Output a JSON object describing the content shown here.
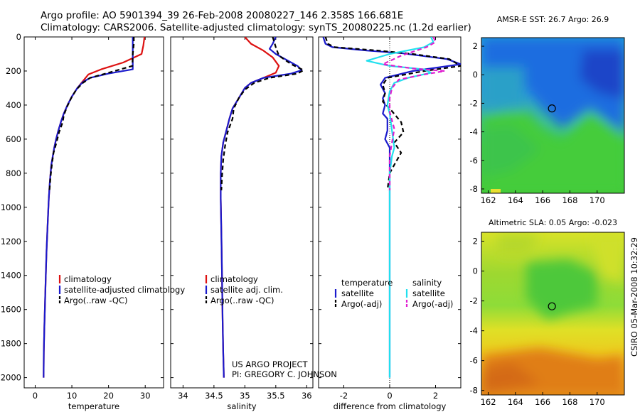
{
  "header": {
    "line1": "Argo profile: AO 5901394_39 26-Feb-2008 20080227_146 2.358S 166.681E",
    "line2": "Climatology: CARS2006. Satellite-adjusted climatology: synTS_20080225.nc (1.2d earlier)"
  },
  "side_label": "CSIRO 05-Mar-2008 10:32:29",
  "credit": {
    "line1": "US ARGO PROJECT",
    "line2": "PI: GREGORY C. JOHNSON"
  },
  "colors": {
    "climatology": "#dd1111",
    "satellite": "#1a1acc",
    "argo": "#000000",
    "sat_salinity": "#22e0ee",
    "argo_salinity": "#e020d0"
  },
  "chart_data": [
    {
      "type": "line",
      "id": "temperature",
      "xlabel": "temperature",
      "ylabel": "",
      "xlim": [
        -3,
        35
      ],
      "ylim": [
        2060,
        0
      ],
      "y_reversed": true,
      "xticks": [
        0,
        10,
        20,
        30
      ],
      "yticks": [
        0,
        200,
        400,
        600,
        800,
        1000,
        1200,
        1400,
        1600,
        1800,
        2000
      ],
      "legend": [
        "climatology",
        "satellite-adjusted climatology",
        "Argo(..raw -QC)"
      ],
      "series": [
        {
          "name": "climatology",
          "color": "#dd1111",
          "dash": "",
          "points": [
            [
              29.8,
              0
            ],
            [
              29.5,
              50
            ],
            [
              29.0,
              100
            ],
            [
              24,
              150
            ],
            [
              18,
              190
            ],
            [
              14.5,
              220
            ],
            [
              13,
              260
            ],
            [
              11.5,
              300
            ],
            [
              10,
              350
            ],
            [
              8.8,
              400
            ],
            [
              7.8,
              450
            ],
            [
              7.0,
              500
            ],
            [
              6.3,
              550
            ],
            [
              5.7,
              600
            ],
            [
              5.2,
              650
            ],
            [
              4.8,
              700
            ],
            [
              4.4,
              750
            ],
            [
              4.0,
              850
            ],
            [
              3.7,
              950
            ],
            [
              3.4,
              1100
            ],
            [
              3.1,
              1250
            ],
            [
              2.9,
              1400
            ],
            [
              2.7,
              1550
            ],
            [
              2.5,
              1700
            ],
            [
              2.35,
              1850
            ],
            [
              2.3,
              2000
            ]
          ]
        },
        {
          "name": "satellite-adjusted climatology",
          "color": "#1a1acc",
          "dash": "",
          "points": [
            [
              26.6,
              0
            ],
            [
              26.6,
              100
            ],
            [
              26.6,
              190
            ],
            [
              20,
              215
            ],
            [
              15,
              240
            ],
            [
              13,
              265
            ],
            [
              11.5,
              300
            ],
            [
              10,
              350
            ],
            [
              8.8,
              400
            ],
            [
              7.8,
              450
            ],
            [
              7.0,
              500
            ],
            [
              6.3,
              550
            ],
            [
              5.7,
              600
            ],
            [
              5.2,
              650
            ],
            [
              4.8,
              700
            ],
            [
              4.4,
              750
            ],
            [
              4.0,
              850
            ],
            [
              3.7,
              950
            ],
            [
              3.4,
              1100
            ],
            [
              3.1,
              1250
            ],
            [
              2.9,
              1400
            ],
            [
              2.7,
              1550
            ],
            [
              2.5,
              1700
            ],
            [
              2.35,
              1850
            ],
            [
              2.3,
              2000
            ]
          ]
        },
        {
          "name": "Argo(..raw -QC)",
          "color": "#000000",
          "dash": "6,4",
          "points": [
            [
              26.9,
              0
            ],
            [
              26.9,
              40
            ],
            [
              26.6,
              100
            ],
            [
              26.5,
              170
            ],
            [
              20,
              210
            ],
            [
              15,
              240
            ],
            [
              13,
              270
            ],
            [
              11.2,
              310
            ],
            [
              9.8,
              360
            ],
            [
              8.7,
              410
            ],
            [
              7.8,
              460
            ],
            [
              7.5,
              500
            ],
            [
              6.5,
              560
            ],
            [
              5.8,
              620
            ],
            [
              5.0,
              680
            ],
            [
              4.6,
              740
            ],
            [
              4.2,
              820
            ],
            [
              3.9,
              900
            ]
          ]
        }
      ]
    },
    {
      "type": "line",
      "id": "salinity",
      "xlabel": "salinity",
      "ylabel": "",
      "xlim": [
        33.8,
        36.1
      ],
      "ylim": [
        2060,
        0
      ],
      "y_reversed": true,
      "xticks": [
        34,
        34.5,
        35,
        35.5,
        36
      ],
      "legend": [
        "climatology",
        "satellite adj. clim.",
        "Argo(..raw -QC)"
      ],
      "series": [
        {
          "name": "climatology",
          "color": "#dd1111",
          "dash": "",
          "points": [
            [
              35.0,
              0
            ],
            [
              35.1,
              40
            ],
            [
              35.3,
              80
            ],
            [
              35.45,
              120
            ],
            [
              35.55,
              170
            ],
            [
              35.5,
              210
            ],
            [
              35.3,
              240
            ],
            [
              35.1,
              270
            ],
            [
              35.0,
              300
            ],
            [
              34.9,
              360
            ],
            [
              34.8,
              420
            ],
            [
              34.75,
              480
            ],
            [
              34.7,
              550
            ],
            [
              34.65,
              620
            ],
            [
              34.62,
              700
            ],
            [
              34.61,
              800
            ],
            [
              34.61,
              950
            ],
            [
              34.62,
              1150
            ],
            [
              34.63,
              1400
            ],
            [
              34.64,
              1650
            ],
            [
              34.65,
              1850
            ],
            [
              34.66,
              2000
            ]
          ]
        },
        {
          "name": "satellite adj. clim.",
          "color": "#1a1acc",
          "dash": "",
          "points": [
            [
              35.5,
              0
            ],
            [
              35.45,
              40
            ],
            [
              35.4,
              70
            ],
            [
              35.5,
              100
            ],
            [
              35.7,
              140
            ],
            [
              35.85,
              170
            ],
            [
              35.92,
              195
            ],
            [
              35.75,
              215
            ],
            [
              35.3,
              240
            ],
            [
              35.1,
              270
            ],
            [
              35.0,
              300
            ],
            [
              34.9,
              360
            ],
            [
              34.8,
              420
            ],
            [
              34.75,
              480
            ],
            [
              34.7,
              550
            ],
            [
              34.65,
              620
            ],
            [
              34.62,
              700
            ],
            [
              34.61,
              800
            ],
            [
              34.61,
              950
            ],
            [
              34.62,
              1150
            ],
            [
              34.63,
              1400
            ],
            [
              34.64,
              1650
            ],
            [
              34.65,
              1850
            ],
            [
              34.66,
              2000
            ]
          ]
        },
        {
          "name": "Argo(..raw -QC)",
          "color": "#000000",
          "dash": "6,4",
          "points": [
            [
              35.45,
              0
            ],
            [
              35.5,
              60
            ],
            [
              35.55,
              110
            ],
            [
              35.75,
              160
            ],
            [
              35.95,
              195
            ],
            [
              35.85,
              215
            ],
            [
              35.4,
              240
            ],
            [
              35.15,
              270
            ],
            [
              35.0,
              310
            ],
            [
              34.9,
              360
            ],
            [
              34.82,
              420
            ],
            [
              34.8,
              480
            ],
            [
              34.72,
              560
            ],
            [
              34.68,
              640
            ],
            [
              34.65,
              720
            ],
            [
              34.63,
              820
            ],
            [
              34.62,
              900
            ]
          ]
        }
      ]
    },
    {
      "type": "line",
      "id": "difference",
      "xlabel": "difference from climatology",
      "ylabel": "",
      "xlim": [
        -3.1,
        3.1
      ],
      "ylim": [
        2060,
        0
      ],
      "y_reversed": true,
      "xticks": [
        -2,
        0,
        2
      ],
      "legend_groups": [
        {
          "heading": "temperature",
          "entries": [
            "satellite",
            "Argo(-adj)"
          ]
        },
        {
          "heading": "salinity",
          "entries": [
            "satellite",
            "Argo(-adj)"
          ]
        }
      ],
      "series": [
        {
          "name": "temperature satellite",
          "color": "#1a1acc",
          "dash": "",
          "points": [
            [
              -2.9,
              0
            ],
            [
              -2.8,
              40
            ],
            [
              -2.5,
              60
            ],
            [
              -1.0,
              80
            ],
            [
              0.5,
              95
            ],
            [
              2.5,
              130
            ],
            [
              3.1,
              160
            ],
            [
              1.0,
              200
            ],
            [
              -0.2,
              240
            ],
            [
              -0.4,
              280
            ],
            [
              -0.2,
              330
            ],
            [
              -0.3,
              360
            ],
            [
              -0.2,
              400
            ],
            [
              -0.3,
              450
            ],
            [
              -0.1,
              480
            ],
            [
              -0.1,
              550
            ],
            [
              -0.2,
              600
            ],
            [
              0,
              650
            ],
            [
              0,
              800
            ],
            [
              0,
              1000
            ],
            [
              0,
              2000
            ]
          ]
        },
        {
          "name": "temperature Argo(-adj)",
          "color": "#000000",
          "dash": "6,4",
          "points": [
            [
              -2.8,
              0
            ],
            [
              -2.7,
              40
            ],
            [
              -2.4,
              60
            ],
            [
              -0.5,
              80
            ],
            [
              1.0,
              100
            ],
            [
              2.6,
              130
            ],
            [
              3.1,
              170
            ],
            [
              1.5,
              200
            ],
            [
              -0.1,
              240
            ],
            [
              -0.3,
              280
            ],
            [
              -0.2,
              330
            ],
            [
              -0.3,
              380
            ],
            [
              0.0,
              420
            ],
            [
              0.5,
              500
            ],
            [
              0.6,
              560
            ],
            [
              0.2,
              620
            ],
            [
              0.5,
              680
            ],
            [
              0.2,
              750
            ],
            [
              0,
              800
            ],
            [
              -0.1,
              900
            ]
          ]
        },
        {
          "name": "salinity satellite",
          "color": "#22e0ee",
          "dash": "",
          "points": [
            [
              1.8,
              0
            ],
            [
              1.9,
              30
            ],
            [
              1.5,
              60
            ],
            [
              0,
              100
            ],
            [
              -1.0,
              140
            ],
            [
              0,
              170
            ],
            [
              1.5,
              190
            ],
            [
              1.8,
              210
            ],
            [
              0.8,
              240
            ],
            [
              0.2,
              270
            ],
            [
              0,
              320
            ],
            [
              -0.1,
              400
            ],
            [
              0,
              450
            ],
            [
              0.1,
              550
            ],
            [
              0.2,
              650
            ],
            [
              0.1,
              700
            ],
            [
              0,
              800
            ],
            [
              0,
              1000
            ],
            [
              0,
              2000
            ]
          ]
        },
        {
          "name": "salinity Argo(-adj)",
          "color": "#e020d0",
          "dash": "6,4",
          "points": [
            [
              1.9,
              0
            ],
            [
              2.0,
              30
            ],
            [
              1.6,
              60
            ],
            [
              0.5,
              110
            ],
            [
              -0.3,
              160
            ],
            [
              1.0,
              185
            ],
            [
              2.4,
              200
            ],
            [
              1.5,
              220
            ],
            [
              0.4,
              250
            ],
            [
              0.1,
              300
            ],
            [
              0,
              360
            ],
            [
              0,
              440
            ],
            [
              0.2,
              540
            ],
            [
              0.1,
              620
            ],
            [
              0,
              700
            ],
            [
              0,
              900
            ]
          ]
        }
      ]
    },
    {
      "type": "heatmap",
      "id": "amsre-sst",
      "title": "AMSR-E SST: 26.7 Argo: 26.9",
      "xlim": [
        161.5,
        172
      ],
      "ylim": [
        -8.3,
        2.6
      ],
      "xticks": [
        162,
        164,
        166,
        168,
        170
      ],
      "yticks": [
        2,
        0,
        -2,
        -4,
        -6,
        -8
      ],
      "marker": [
        166.68,
        -2.36
      ]
    },
    {
      "type": "heatmap",
      "id": "altimetric-sla",
      "title": "Altimetric SLA: 0.05 Argo: -0.023",
      "xlim": [
        161.5,
        172
      ],
      "ylim": [
        -8.3,
        2.6
      ],
      "xticks": [
        162,
        164,
        166,
        168,
        170
      ],
      "yticks": [
        2,
        0,
        -2,
        -4,
        -6,
        -8
      ],
      "marker": [
        166.68,
        -2.36
      ]
    }
  ]
}
